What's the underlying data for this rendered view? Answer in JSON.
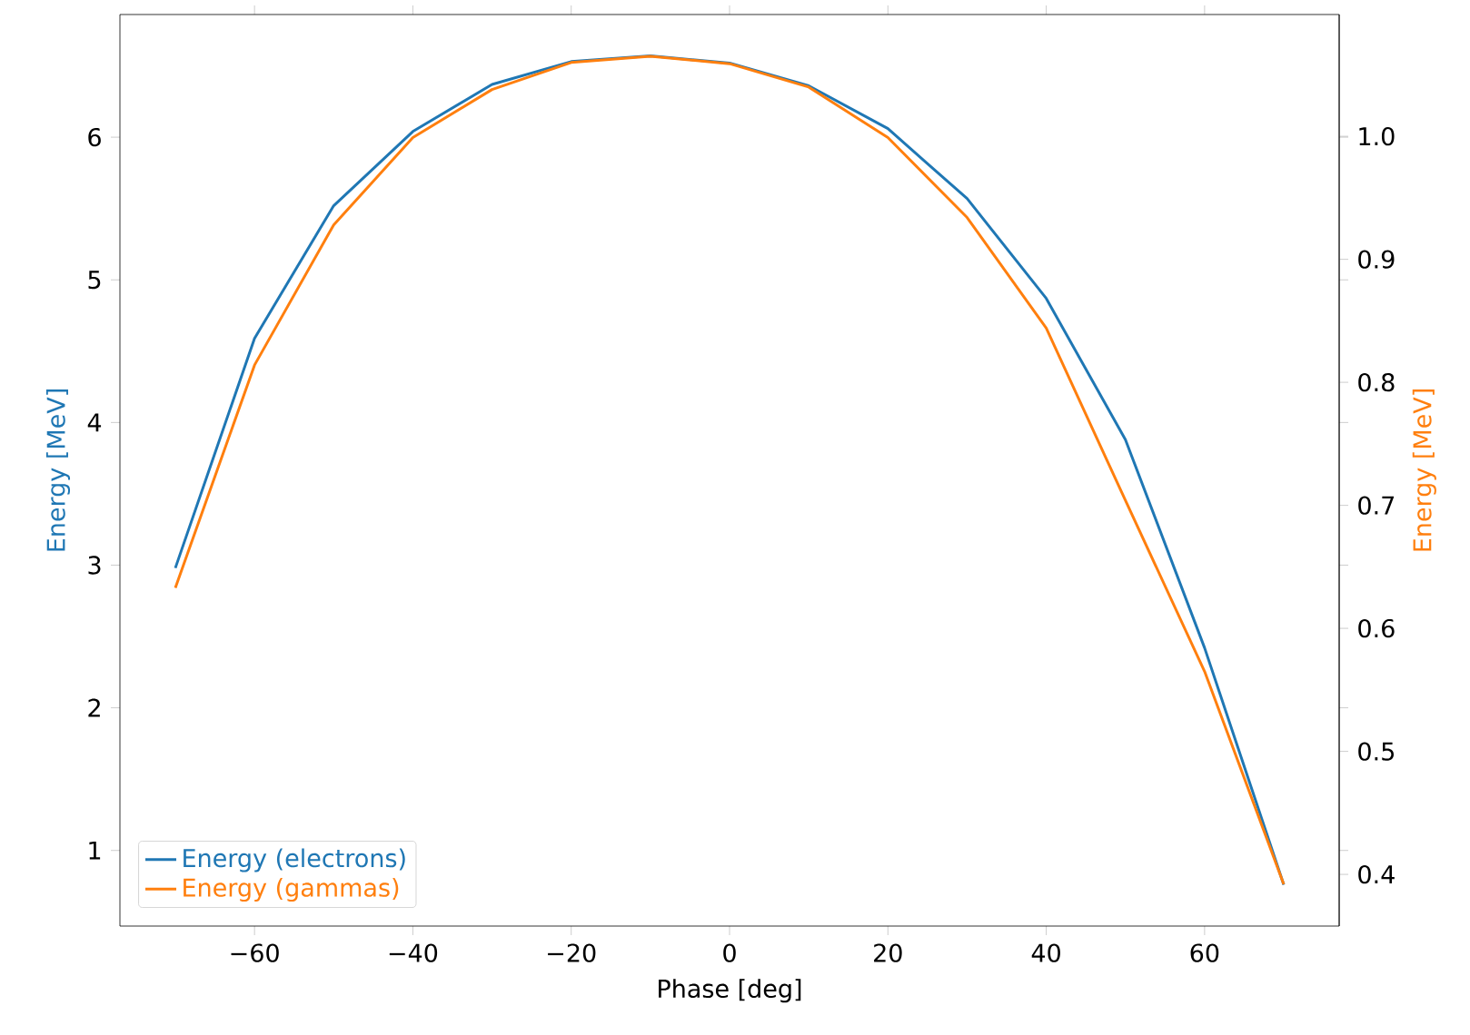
{
  "chart_data": {
    "type": "line",
    "xlabel": "Phase [deg]",
    "ylabel": "Energy [MeV]",
    "y2label": "Energy [MeV]",
    "x": [
      -70,
      -60,
      -50,
      -40,
      -30,
      -20,
      -10,
      0,
      10,
      20,
      30,
      40,
      50,
      60,
      70
    ],
    "series": [
      {
        "name": "Energy (electrons)",
        "color": "#1f77b4",
        "values": [
          2.98,
          4.59,
          5.52,
          6.04,
          6.37,
          6.53,
          6.57,
          6.52,
          6.36,
          6.06,
          5.57,
          4.87,
          3.88,
          2.42,
          0.76
        ]
      },
      {
        "name": "Energy (gammas)",
        "color": "#ff7f0e",
        "axis": "y2",
        "values": [
          0.633,
          0.814,
          0.928,
          0.999,
          1.038,
          1.06,
          1.065,
          1.059,
          1.04,
          0.999,
          0.934,
          0.844,
          0.704,
          0.565,
          0.392
        ]
      }
    ],
    "xlim": [
      -77,
      77
    ],
    "xticks": [
      {
        "value": -60,
        "label": "−60"
      },
      {
        "value": -40,
        "label": "−40"
      },
      {
        "value": -20,
        "label": "−20"
      },
      0,
      20,
      40,
      60
    ],
    "ylim": [
      0.47,
      6.86
    ],
    "yticks": [
      1,
      2,
      3,
      4,
      5,
      6
    ],
    "y2lim": [
      0.358,
      1.099
    ],
    "y2ticks": [
      0.4,
      0.5,
      0.6,
      0.7,
      0.8,
      0.9,
      {
        "value": 1.0,
        "label": "1.0"
      }
    ],
    "legend": "bottom left"
  }
}
